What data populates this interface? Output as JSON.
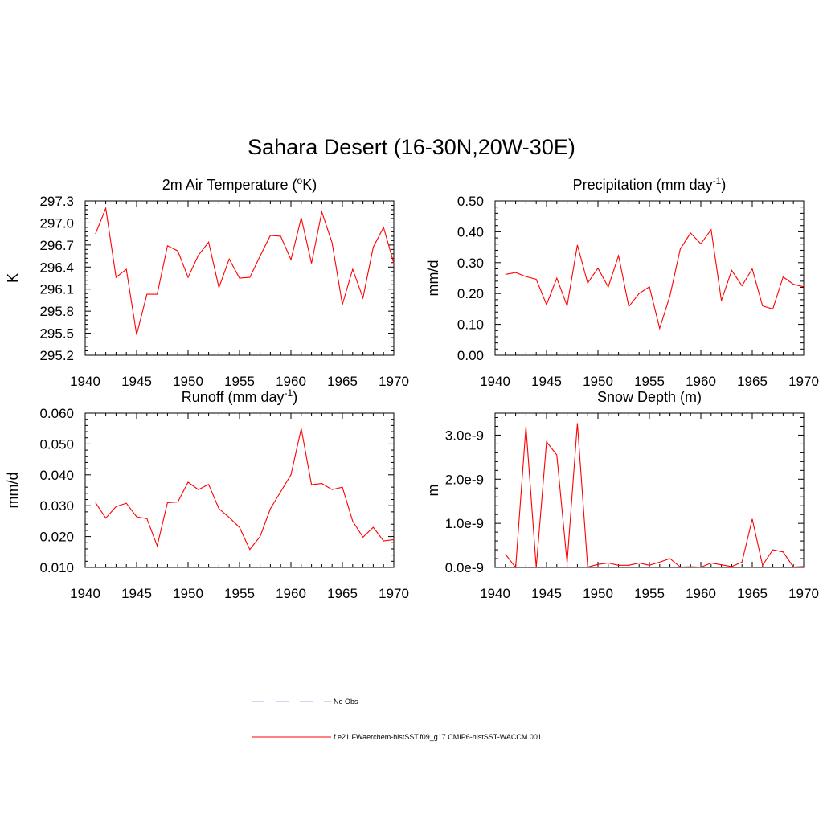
{
  "title": "Sahara Desert (16-30N,20W-30E)",
  "legend": [
    {
      "label": "No Obs",
      "color": "#aaaaee",
      "dash": true
    },
    {
      "label": "f.e21.FWaerchem-histSST.f09_g17.CMIP6-histSST-WACCM.001",
      "color": "#ff0000",
      "dash": false
    }
  ],
  "chart_data": [
    {
      "type": "line",
      "title": "2m Air Temperature (",
      "title_sup": "o",
      "title_suffix": "K)",
      "ylabel": "K",
      "xlim": [
        1940,
        1970
      ],
      "ylim": [
        295.2,
        297.3
      ],
      "xticks": [
        "1940",
        "1945",
        "1950",
        "1955",
        "1960",
        "1965",
        "1970"
      ],
      "yticks": [
        "295.2",
        "295.5",
        "295.8",
        "296.1",
        "296.4",
        "296.7",
        "297.0",
        "297.3"
      ],
      "series": [
        {
          "color": "#ff0000",
          "x": [
            1941,
            1942,
            1943,
            1944,
            1945,
            1946,
            1947,
            1948,
            1949,
            1950,
            1951,
            1952,
            1953,
            1954,
            1955,
            1956,
            1957,
            1958,
            1959,
            1960,
            1961,
            1962,
            1963,
            1964,
            1965,
            1966,
            1967,
            1968,
            1969,
            1970
          ],
          "values": [
            296.85,
            297.2,
            296.26,
            296.37,
            295.48,
            296.03,
            296.03,
            296.69,
            296.62,
            296.26,
            296.56,
            296.74,
            296.12,
            296.51,
            296.25,
            296.26,
            296.55,
            296.83,
            296.82,
            296.5,
            297.07,
            296.45,
            297.15,
            296.73,
            295.89,
            296.37,
            295.98,
            296.67,
            296.94,
            296.45
          ]
        }
      ]
    },
    {
      "type": "line",
      "title": "Precipitation (mm day",
      "title_sup": "-1",
      "title_suffix": ")",
      "ylabel": "mm/d",
      "xlim": [
        1940,
        1970
      ],
      "ylim": [
        0.0,
        0.5
      ],
      "xticks": [
        "1940",
        "1945",
        "1950",
        "1955",
        "1960",
        "1965",
        "1970"
      ],
      "yticks": [
        "0.00",
        "0.10",
        "0.20",
        "0.30",
        "0.40",
        "0.50"
      ],
      "series": [
        {
          "color": "#ff0000",
          "x": [
            1941,
            1942,
            1943,
            1944,
            1945,
            1946,
            1947,
            1948,
            1949,
            1950,
            1951,
            1952,
            1953,
            1954,
            1955,
            1956,
            1957,
            1958,
            1959,
            1960,
            1961,
            1962,
            1963,
            1964,
            1965,
            1966,
            1967,
            1968,
            1969,
            1970
          ],
          "values": [
            0.262,
            0.268,
            0.255,
            0.246,
            0.164,
            0.25,
            0.16,
            0.357,
            0.234,
            0.282,
            0.221,
            0.323,
            0.158,
            0.2,
            0.222,
            0.087,
            0.193,
            0.344,
            0.396,
            0.361,
            0.407,
            0.177,
            0.275,
            0.225,
            0.28,
            0.16,
            0.15,
            0.254,
            0.23,
            0.222
          ]
        }
      ]
    },
    {
      "type": "line",
      "title": "Runoff (mm day",
      "title_sup": "-1",
      "title_suffix": ")",
      "ylabel": "mm/d",
      "xlim": [
        1940,
        1970
      ],
      "ylim": [
        0.01,
        0.06
      ],
      "xticks": [
        "1940",
        "1945",
        "1950",
        "1955",
        "1960",
        "1965",
        "1970"
      ],
      "yticks": [
        "0.010",
        "0.020",
        "0.030",
        "0.040",
        "0.050",
        "0.060"
      ],
      "series": [
        {
          "color": "#ff0000",
          "x": [
            1941,
            1942,
            1943,
            1944,
            1945,
            1946,
            1947,
            1948,
            1949,
            1950,
            1951,
            1952,
            1953,
            1954,
            1955,
            1956,
            1957,
            1958,
            1959,
            1960,
            1961,
            1962,
            1963,
            1964,
            1965,
            1966,
            1967,
            1968,
            1969,
            1970
          ],
          "values": [
            0.031,
            0.026,
            0.0297,
            0.0308,
            0.0264,
            0.0258,
            0.017,
            0.031,
            0.0312,
            0.0376,
            0.0352,
            0.0369,
            0.029,
            0.0262,
            0.023,
            0.0158,
            0.02,
            0.029,
            0.0345,
            0.04,
            0.055,
            0.0368,
            0.0372,
            0.0352,
            0.036,
            0.025,
            0.0198,
            0.023,
            0.0186,
            0.019
          ]
        }
      ]
    },
    {
      "type": "line",
      "title": "Snow Depth (m)",
      "title_sup": "",
      "title_suffix": "",
      "ylabel": "m",
      "xlim": [
        1940,
        1970
      ],
      "ylim": [
        0.0,
        3.5e-09
      ],
      "ytick_values": [
        0.0,
        1e-09,
        2e-09,
        3e-09
      ],
      "xticks": [
        "1940",
        "1945",
        "1950",
        "1955",
        "1960",
        "1965",
        "1970"
      ],
      "yticks": [
        "0.0e-9",
        "1.0e-9",
        "2.0e-9",
        "3.0e-9"
      ],
      "series": [
        {
          "color": "#ff0000",
          "x": [
            1941,
            1942,
            1943,
            1944,
            1945,
            1946,
            1947,
            1948,
            1949,
            1950,
            1951,
            1952,
            1953,
            1954,
            1955,
            1956,
            1957,
            1958,
            1959,
            1960,
            1961,
            1962,
            1963,
            1964,
            1965,
            1966,
            1967,
            1968,
            1969,
            1970
          ],
          "values": [
            3e-10,
            0.0,
            3.2e-09,
            0.0,
            2.85e-09,
            2.55e-09,
            1e-10,
            3.27e-09,
            1e-11,
            7e-11,
            1e-10,
            5e-11,
            5e-11,
            1e-10,
            5e-11,
            1.2e-10,
            2e-10,
            1e-11,
            1.5e-11,
            5e-12,
            1e-10,
            6e-11,
            2e-11,
            1.2e-10,
            1.1e-09,
            5e-11,
            4e-10,
            3.5e-10,
            1e-11,
            2e-11
          ]
        }
      ]
    }
  ]
}
